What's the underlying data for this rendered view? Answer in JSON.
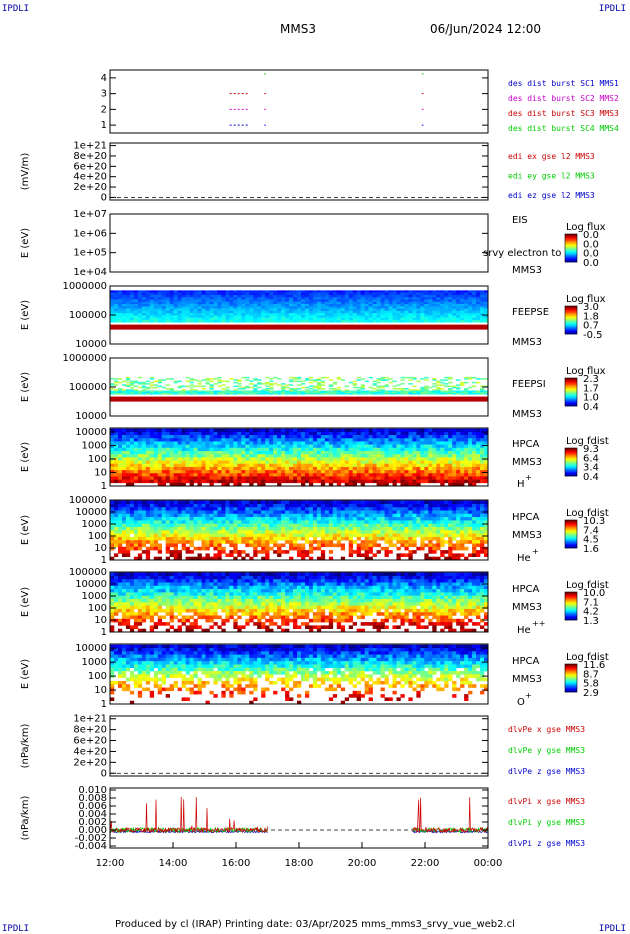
{
  "header": {
    "corner_left": "IPDLI",
    "corner_right": "IPDLI",
    "title": "MMS3",
    "datetime": "06/Jun/2024 12:00"
  },
  "footer": {
    "corner_left": "IPDLI",
    "corner_right": "IPDLI",
    "text": "Produced by cl (IRAP)    Printing date: 03/Apr/2025    mms_mms3_srvy_vue_web2.cl"
  },
  "chart_data": [
    {
      "id": "p1",
      "type": "scatter",
      "ylabel": "",
      "ticks": [
        "4",
        "3",
        "2",
        "1"
      ],
      "tickvals": [
        4,
        3,
        2,
        1
      ],
      "ylim": [
        0.5,
        4.5
      ],
      "legend": [
        {
          "text": "des dist burst SC1 MMS1",
          "color": "#0000cc"
        },
        {
          "text": "des dist burst SC2 MMS2",
          "color": "#cc00cc"
        },
        {
          "text": "des dist burst SC3 MMS3",
          "color": "#cc0000"
        },
        {
          "text": "des dist burst SC4 MMS4",
          "color": "#00cc00"
        }
      ]
    },
    {
      "id": "p2",
      "type": "line",
      "ylabel": "(mV/m)",
      "ticks": [
        "1e+21",
        "8e+20",
        "6e+20",
        "4e+20",
        "2e+20",
        "0"
      ],
      "tickvals": [
        10,
        8,
        6,
        4,
        2,
        0
      ],
      "ylim": [
        -0.5,
        10.5
      ],
      "legend": [
        {
          "text": "edi ex gse l2 MMS3",
          "color": "#cc0000"
        },
        {
          "text": "edi ey gse l2 MMS3",
          "color": "#00cc00"
        },
        {
          "text": "edi ez gse l2 MMS3",
          "color": "#0000cc"
        }
      ]
    },
    {
      "id": "p3",
      "type": "heatmap",
      "ylabel": "E (eV)",
      "ticks": [
        "1e+07",
        "1e+06",
        "1e+05",
        "1e+04"
      ],
      "tickvals": [
        7,
        6,
        5,
        4
      ],
      "ylim": [
        4,
        7
      ],
      "instr": [
        "EIS",
        "MMS3"
      ],
      "overlay": "srvy electron to",
      "cb_title": "Log flux",
      "cb_labels": [
        "0.0",
        "0.0",
        "0.0",
        "0.0"
      ]
    },
    {
      "id": "p4",
      "type": "heatmap",
      "ylabel": "E (eV)",
      "ticks": [
        "1000000",
        "100000",
        "10000"
      ],
      "tickvals": [
        6,
        5,
        4
      ],
      "ylim": [
        4,
        6
      ],
      "instr": [
        "FEEPSE",
        "MMS3"
      ],
      "cb_title": "Log flux",
      "cb_labels": [
        "3.0",
        "1.8",
        "0.7",
        "-0.5"
      ]
    },
    {
      "id": "p5",
      "type": "heatmap",
      "ylabel": "E (eV)",
      "ticks": [
        "1000000",
        "100000",
        "10000"
      ],
      "tickvals": [
        6,
        5,
        4
      ],
      "ylim": [
        4,
        6
      ],
      "instr": [
        "FEEPSI",
        "MMS3"
      ],
      "cb_title": "Log flux",
      "cb_labels": [
        "2.3",
        "1.7",
        "1.0",
        "0.4"
      ]
    },
    {
      "id": "p6",
      "type": "heatmap",
      "ylabel": "E (eV)",
      "ticks": [
        "10000",
        "1000",
        "100",
        "10",
        "1"
      ],
      "tickvals": [
        4,
        3,
        2,
        1,
        0
      ],
      "ylim": [
        0,
        4.3
      ],
      "instr": [
        "HPCA",
        "MMS3"
      ],
      "species": "H",
      "sup": "+",
      "cb_title": "Log fdist",
      "cb_labels": [
        "9.3",
        "6.4",
        "3.4",
        "0.4"
      ]
    },
    {
      "id": "p7",
      "type": "heatmap",
      "ylabel": "E (eV)",
      "ticks": [
        "100000",
        "10000",
        "1000",
        "100",
        "10",
        "1"
      ],
      "tickvals": [
        5,
        4,
        3,
        2,
        1,
        0
      ],
      "ylim": [
        0,
        5
      ],
      "instr": [
        "HPCA",
        "MMS3"
      ],
      "species": "He",
      "sup": "+",
      "cb_title": "Log fdist",
      "cb_labels": [
        "10.3",
        "7.4",
        "4.5",
        "1.6"
      ]
    },
    {
      "id": "p8",
      "type": "heatmap",
      "ylabel": "E (eV)",
      "ticks": [
        "100000",
        "10000",
        "1000",
        "100",
        "10",
        "1"
      ],
      "tickvals": [
        5,
        4,
        3,
        2,
        1,
        0
      ],
      "ylim": [
        0,
        5
      ],
      "instr": [
        "HPCA",
        "MMS3"
      ],
      "species": "He",
      "sup": "++",
      "cb_title": "Log fdist",
      "cb_labels": [
        "10.0",
        "7.1",
        "4.2",
        "1.3"
      ]
    },
    {
      "id": "p9",
      "type": "heatmap",
      "ylabel": "E (eV)",
      "ticks": [
        "10000",
        "1000",
        "100",
        "10",
        "1"
      ],
      "tickvals": [
        4,
        3,
        2,
        1,
        0
      ],
      "ylim": [
        0,
        4.3
      ],
      "instr": [
        "HPCA",
        "MMS3"
      ],
      "species": "O",
      "sup": "+",
      "cb_title": "Log fdist",
      "cb_labels": [
        "11.6",
        "8.7",
        "5.8",
        "2.9"
      ]
    },
    {
      "id": "p10",
      "type": "line",
      "ylabel": "(nPa/km)",
      "ticks": [
        "1e+21",
        "8e+20",
        "6e+20",
        "4e+20",
        "2e+20",
        "0"
      ],
      "tickvals": [
        10,
        8,
        6,
        4,
        2,
        0
      ],
      "ylim": [
        -0.5,
        10.5
      ],
      "legend": [
        {
          "text": "dlvPe x gse MMS3",
          "color": "#cc0000"
        },
        {
          "text": "dlvPe y gse MMS3",
          "color": "#00cc00"
        },
        {
          "text": "dlvPe z gse MMS3",
          "color": "#0000cc"
        }
      ]
    },
    {
      "id": "p11",
      "type": "line",
      "ylabel": "(nPa/km)",
      "ticks": [
        "0.010",
        "0.008",
        "0.006",
        "0.004",
        "0.002",
        "0.000",
        "-0.002",
        "-0.004"
      ],
      "tickvals": [
        0.01,
        0.008,
        0.006,
        0.004,
        0.002,
        0.0,
        -0.002,
        -0.004
      ],
      "ylim": [
        -0.0045,
        0.0105
      ],
      "legend": [
        {
          "text": "dlvPi x gse MMS3",
          "color": "#cc0000"
        },
        {
          "text": "dlvPi y gse MMS3",
          "color": "#00cc00"
        },
        {
          "text": "dlvPi z gse MMS3",
          "color": "#0000cc"
        }
      ]
    }
  ],
  "xaxis": {
    "ticks": [
      "12:00",
      "14:00",
      "16:00",
      "18:00",
      "20:00",
      "22:00",
      "00:00"
    ],
    "hours": [
      12,
      14,
      16,
      18,
      20,
      22,
      24
    ]
  }
}
